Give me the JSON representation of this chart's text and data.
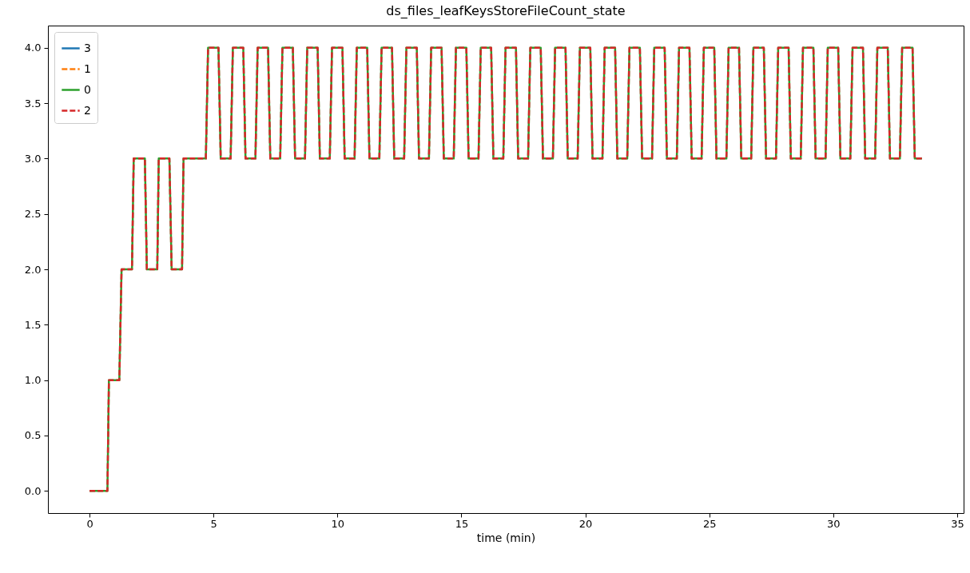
{
  "chart_data": {
    "type": "line",
    "title": "ds_files_leafKeysStoreFileCount_state",
    "xlabel": "time (min)",
    "x": [
      0,
      0.72,
      0.78,
      1.2,
      1.29,
      1.71,
      1.78,
      2.23,
      2.31,
      2.73,
      2.79,
      3.22,
      3.31,
      3.73,
      3.79,
      4.69,
      4.78,
      5.2,
      5.29,
      5.69,
      5.78,
      6.2,
      6.29,
      6.69,
      6.78,
      7.2,
      7.29,
      7.69,
      7.78,
      8.2,
      8.29,
      8.69,
      8.78,
      9.2,
      9.29,
      9.69,
      9.78,
      10.2,
      10.29,
      10.69,
      10.78,
      11.2,
      11.29,
      11.69,
      11.78,
      12.2,
      12.29,
      12.69,
      12.78,
      13.2,
      13.29,
      13.69,
      13.78,
      14.2,
      14.29,
      14.69,
      14.78,
      15.2,
      15.29,
      15.69,
      15.78,
      16.2,
      16.29,
      16.69,
      16.78,
      17.2,
      17.29,
      17.69,
      17.78,
      18.2,
      18.29,
      18.69,
      18.78,
      19.2,
      19.29,
      19.69,
      19.78,
      20.2,
      20.29,
      20.69,
      20.78,
      21.2,
      21.29,
      21.69,
      21.78,
      22.2,
      22.29,
      22.69,
      22.78,
      23.2,
      23.29,
      23.69,
      23.78,
      24.2,
      24.29,
      24.69,
      24.78,
      25.2,
      25.29,
      25.69,
      25.78,
      26.2,
      26.29,
      26.69,
      26.78,
      27.2,
      27.29,
      27.69,
      27.78,
      28.2,
      28.29,
      28.69,
      28.78,
      29.2,
      29.29,
      29.69,
      29.78,
      30.2,
      30.29,
      30.69,
      30.78,
      31.2,
      31.29,
      31.69,
      31.78,
      32.2,
      32.29,
      32.69,
      32.78,
      33.2,
      33.29,
      33.58
    ],
    "series": [
      {
        "name": "3",
        "color": "#1f77b4",
        "line_style": "solid",
        "values": [
          null,
          null,
          null,
          null,
          null,
          null,
          null,
          null,
          null,
          null,
          null,
          null,
          null,
          null,
          null,
          null,
          null,
          null,
          null,
          null,
          null,
          null,
          null,
          null,
          null,
          null,
          null,
          null,
          null,
          null,
          null,
          null,
          null,
          null,
          null,
          null,
          null,
          null,
          null,
          null,
          null,
          null,
          null,
          null,
          null,
          null,
          null,
          null,
          null,
          null,
          null,
          null,
          null,
          null,
          null,
          null,
          null,
          null,
          null,
          null,
          null,
          null,
          null,
          null,
          null,
          null,
          null,
          null,
          null,
          null,
          null,
          null,
          null,
          null,
          null,
          null,
          null,
          null,
          null,
          null,
          null,
          null,
          null,
          null,
          null,
          null,
          null,
          null,
          null,
          null,
          null,
          null,
          null,
          null,
          null,
          null,
          null,
          null,
          null,
          null,
          null,
          null,
          null,
          null,
          null,
          null,
          null,
          null,
          null,
          null,
          null,
          null,
          null,
          null,
          null,
          null,
          null,
          null,
          null,
          null,
          null,
          null,
          null,
          null,
          null,
          null,
          null,
          null,
          null,
          null,
          null,
          null
        ]
      },
      {
        "name": "1",
        "color": "#ff7f0e",
        "line_style": "dashed",
        "values": [
          null,
          null,
          null,
          null,
          null,
          null,
          null,
          null,
          null,
          null,
          null,
          null,
          null,
          null,
          null,
          null,
          null,
          null,
          null,
          null,
          null,
          null,
          null,
          null,
          null,
          null,
          null,
          null,
          null,
          null,
          null,
          null,
          null,
          null,
          null,
          null,
          null,
          null,
          null,
          null,
          null,
          null,
          null,
          null,
          null,
          null,
          null,
          null,
          null,
          null,
          null,
          null,
          null,
          null,
          null,
          null,
          null,
          null,
          null,
          null,
          null,
          null,
          null,
          null,
          null,
          null,
          null,
          null,
          null,
          null,
          null,
          null,
          null,
          null,
          null,
          null,
          null,
          null,
          null,
          null,
          null,
          null,
          null,
          null,
          null,
          null,
          null,
          null,
          null,
          null,
          null,
          null,
          null,
          null,
          null,
          null,
          null,
          null,
          null,
          null,
          null,
          null,
          null,
          null,
          null,
          null,
          null,
          null,
          null,
          null,
          null,
          null,
          null,
          null,
          null,
          null,
          null,
          null,
          null,
          null,
          null,
          null,
          null,
          null,
          null,
          null,
          null,
          null,
          null,
          null,
          null,
          null
        ]
      },
      {
        "name": "0",
        "color": "#2ca02c",
        "line_style": "solid",
        "values": [
          0,
          0,
          1,
          1,
          2,
          2,
          3,
          3,
          2,
          2,
          3,
          3,
          2,
          2,
          3,
          3,
          4,
          4,
          3,
          3,
          4,
          4,
          3,
          3,
          4,
          4,
          3,
          3,
          4,
          4,
          3,
          3,
          4,
          4,
          3,
          3,
          4,
          4,
          3,
          3,
          4,
          4,
          3,
          3,
          4,
          4,
          3,
          3,
          4,
          4,
          3,
          3,
          4,
          4,
          3,
          3,
          4,
          4,
          3,
          3,
          4,
          4,
          3,
          3,
          4,
          4,
          3,
          3,
          4,
          4,
          3,
          3,
          4,
          4,
          3,
          3,
          4,
          4,
          3,
          3,
          4,
          4,
          3,
          3,
          4,
          4,
          3,
          3,
          4,
          4,
          3,
          3,
          4,
          4,
          3,
          3,
          4,
          4,
          3,
          3,
          4,
          4,
          3,
          3,
          4,
          4,
          3,
          3,
          4,
          4,
          3,
          3,
          4,
          4,
          3,
          3,
          4,
          4,
          3,
          3,
          4,
          4,
          3,
          3,
          4,
          4,
          3,
          3,
          4,
          4,
          3,
          3
        ]
      },
      {
        "name": "2",
        "color": "#d62728",
        "line_style": "dashed",
        "values": [
          0,
          0,
          1,
          1,
          2,
          2,
          3,
          3,
          2,
          2,
          3,
          3,
          2,
          2,
          3,
          3,
          4,
          4,
          3,
          3,
          4,
          4,
          3,
          3,
          4,
          4,
          3,
          3,
          4,
          4,
          3,
          3,
          4,
          4,
          3,
          3,
          4,
          4,
          3,
          3,
          4,
          4,
          3,
          3,
          4,
          4,
          3,
          3,
          4,
          4,
          3,
          3,
          4,
          4,
          3,
          3,
          4,
          4,
          3,
          3,
          4,
          4,
          3,
          3,
          4,
          4,
          3,
          3,
          4,
          4,
          3,
          3,
          4,
          4,
          3,
          3,
          4,
          4,
          3,
          3,
          4,
          4,
          3,
          3,
          4,
          4,
          3,
          3,
          4,
          4,
          3,
          3,
          4,
          4,
          3,
          3,
          4,
          4,
          3,
          3,
          4,
          4,
          3,
          3,
          4,
          4,
          3,
          3,
          4,
          4,
          3,
          3,
          4,
          4,
          3,
          3,
          4,
          4,
          3,
          3,
          4,
          4,
          3,
          3,
          4,
          4,
          3,
          3,
          4,
          4,
          3,
          3
        ]
      }
    ],
    "xlim": [
      -1.68,
      35.26
    ],
    "xticks": [
      0,
      5,
      10,
      15,
      20,
      25,
      30,
      35
    ],
    "ylim": [
      -0.2,
      4.2
    ],
    "yticks": [
      {
        "value": 0,
        "label": "0.0"
      },
      {
        "value": 0.5,
        "label": "0.5"
      },
      {
        "value": 1,
        "label": "1.0"
      },
      {
        "value": 1.5,
        "label": "1.5"
      },
      {
        "value": 2,
        "label": "2.0"
      },
      {
        "value": 2.5,
        "label": "2.5"
      },
      {
        "value": 3,
        "label": "3.0"
      },
      {
        "value": 3.5,
        "label": "3.5"
      },
      {
        "value": 4,
        "label": "4.0"
      }
    ],
    "grid": false,
    "legend": "top left",
    "marker": "none"
  }
}
